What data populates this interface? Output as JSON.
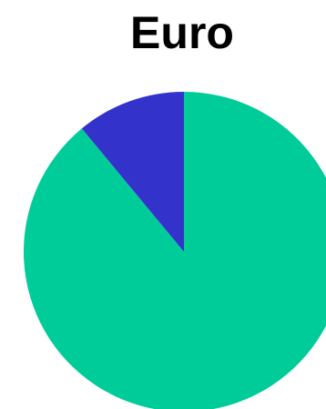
{
  "chart_data": {
    "type": "pie",
    "title": "Euro",
    "start_angle_deg": 0,
    "direction": "clockwise",
    "slices": [
      {
        "label": "",
        "value": 89,
        "color": "#00cc99"
      },
      {
        "label": "",
        "value": 11,
        "color": "#3333cc"
      }
    ],
    "legend": "none"
  }
}
